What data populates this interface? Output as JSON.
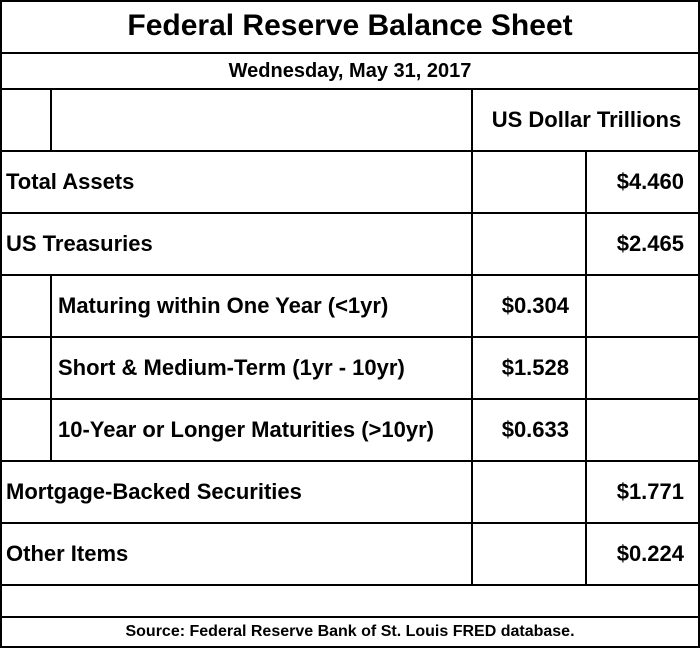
{
  "title": "Federal Reserve Balance Sheet",
  "date": "Wednesday, May 31, 2017",
  "units_header": "US Dollar Trillions",
  "rows": [
    {
      "label": "Total Assets",
      "subvalue": "",
      "value": "$4.460",
      "indent": false
    },
    {
      "label": "US Treasuries",
      "subvalue": "",
      "value": "$2.465",
      "indent": false
    },
    {
      "label": "Maturing within One Year (<1yr)",
      "subvalue": "$0.304",
      "value": "",
      "indent": true
    },
    {
      "label": "Short & Medium-Term (1yr - 10yr)",
      "subvalue": "$1.528",
      "value": "",
      "indent": true
    },
    {
      "label": "10-Year or Longer Maturities (>10yr)",
      "subvalue": "$0.633",
      "value": "",
      "indent": true
    },
    {
      "label": "Mortgage-Backed Securities",
      "subvalue": "",
      "value": "$1.771",
      "indent": false
    },
    {
      "label": "Other Items",
      "subvalue": "",
      "value": "$0.224",
      "indent": false
    }
  ],
  "source": "Source: Federal Reserve Bank of St. Louis FRED database."
}
